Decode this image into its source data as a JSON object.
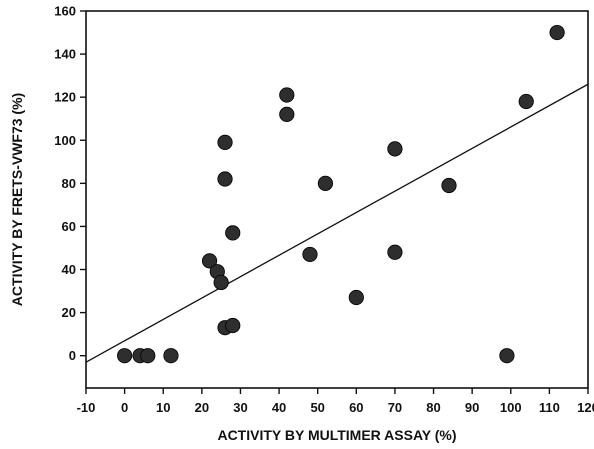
{
  "chart_data": {
    "type": "scatter",
    "title": "",
    "xlabel": "ACTIVITY BY MULTIMER ASSAY (%)",
    "ylabel": "ACTIVITY BY FRETS-VWF73 (%)",
    "xlim": [
      -10,
      120
    ],
    "ylim": [
      -15,
      160
    ],
    "xticks": [
      -10,
      0,
      10,
      20,
      30,
      40,
      50,
      60,
      70,
      80,
      90,
      100,
      110,
      120
    ],
    "yticks": [
      0,
      20,
      40,
      60,
      80,
      100,
      120,
      140,
      160
    ],
    "grid": false,
    "legend": "none",
    "marker_color": "#2e2e2e",
    "line_color": "#111111",
    "series": [
      {
        "values": [
          {
            "x": 0,
            "y": 0
          },
          {
            "x": 4,
            "y": 0
          },
          {
            "x": 6,
            "y": 0
          },
          {
            "x": 12,
            "y": 0
          },
          {
            "x": 22,
            "y": 44
          },
          {
            "x": 24,
            "y": 39
          },
          {
            "x": 25,
            "y": 34
          },
          {
            "x": 26,
            "y": 13
          },
          {
            "x": 26,
            "y": 99
          },
          {
            "x": 26,
            "y": 82
          },
          {
            "x": 28,
            "y": 14
          },
          {
            "x": 28,
            "y": 57
          },
          {
            "x": 42,
            "y": 121
          },
          {
            "x": 42,
            "y": 112
          },
          {
            "x": 48,
            "y": 47
          },
          {
            "x": 52,
            "y": 80
          },
          {
            "x": 60,
            "y": 27
          },
          {
            "x": 70,
            "y": 96
          },
          {
            "x": 70,
            "y": 48
          },
          {
            "x": 84,
            "y": 79
          },
          {
            "x": 99,
            "y": 0
          },
          {
            "x": 104,
            "y": 118
          },
          {
            "x": 112,
            "y": 150
          }
        ]
      }
    ],
    "regression_line": {
      "x": [
        -10,
        120
      ],
      "y": [
        -3,
        126
      ]
    }
  }
}
